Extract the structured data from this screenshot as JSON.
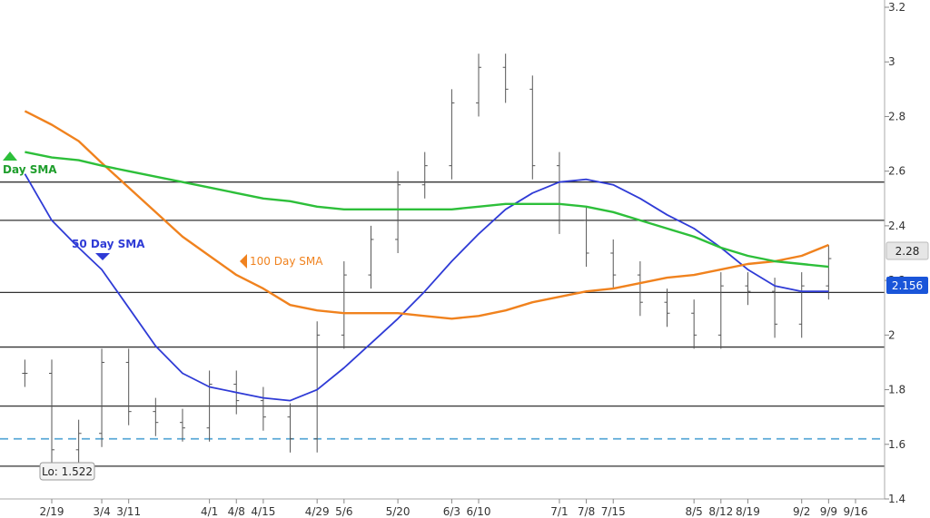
{
  "chart_data": {
    "type": "bar",
    "subtype": "ohlc-price-bars",
    "title": "",
    "xlabel": "",
    "ylabel": "",
    "ylim": [
      1.4,
      3.2
    ],
    "grid": false,
    "x_ticks": [
      "2/19",
      "3/4",
      "3/11",
      "4/1",
      "4/8",
      "4/15",
      "4/29",
      "5/6",
      "5/20",
      "6/3",
      "6/10",
      "7/1",
      "7/8",
      "7/15",
      "8/5",
      "8/12",
      "8/19",
      "9/2",
      "9/9",
      "9/16"
    ],
    "y_ticks": [
      "1.4",
      "1.6",
      "1.8",
      "2",
      "2.2",
      "2.4",
      "2.6",
      "2.8",
      "3",
      "3.2"
    ],
    "x": [
      "2/12",
      "2/19",
      "2/26",
      "3/4",
      "3/11",
      "3/18",
      "3/25",
      "4/1",
      "4/8",
      "4/15",
      "4/22",
      "4/29",
      "5/6",
      "5/13",
      "5/20",
      "5/27",
      "6/3",
      "6/10",
      "6/17",
      "6/24",
      "7/1",
      "7/8",
      "7/15",
      "7/22",
      "7/29",
      "8/5",
      "8/12",
      "8/19",
      "8/26",
      "9/2",
      "9/9"
    ],
    "series": [
      {
        "name": "Price",
        "values": [
          1.86,
          1.58,
          1.64,
          1.9,
          1.72,
          1.68,
          1.66,
          1.82,
          1.76,
          1.7,
          1.62,
          2.0,
          2.22,
          2.35,
          2.55,
          2.62,
          2.85,
          2.98,
          2.9,
          2.62,
          2.42,
          2.3,
          2.22,
          2.12,
          2.08,
          2.0,
          2.18,
          2.16,
          2.04,
          2.18,
          2.28
        ]
      },
      {
        "name": "50 Day SMA",
        "values": [
          2.59,
          2.42,
          2.32,
          2.24,
          2.1,
          1.96,
          1.86,
          1.81,
          1.79,
          1.77,
          1.76,
          1.8,
          1.88,
          1.97,
          2.06,
          2.16,
          2.27,
          2.37,
          2.46,
          2.52,
          2.56,
          2.57,
          2.55,
          2.5,
          2.44,
          2.39,
          2.32,
          2.24,
          2.18,
          2.16,
          2.16
        ]
      },
      {
        "name": "100 Day SMA",
        "values": [
          2.82,
          2.77,
          2.71,
          2.63,
          2.54,
          2.45,
          2.36,
          2.29,
          2.22,
          2.17,
          2.11,
          2.09,
          2.08,
          2.08,
          2.08,
          2.07,
          2.06,
          2.07,
          2.09,
          2.12,
          2.14,
          2.16,
          2.17,
          2.19,
          2.21,
          2.22,
          2.24,
          2.26,
          2.27,
          2.29,
          2.33
        ]
      },
      {
        "name": "Day SMA",
        "values": [
          2.67,
          2.65,
          2.64,
          2.62,
          2.6,
          2.58,
          2.56,
          2.54,
          2.52,
          2.5,
          2.49,
          2.47,
          2.46,
          2.46,
          2.46,
          2.46,
          2.46,
          2.47,
          2.48,
          2.48,
          2.48,
          2.47,
          2.45,
          2.42,
          2.39,
          2.36,
          2.32,
          2.29,
          2.27,
          2.26,
          2.25
        ]
      }
    ],
    "horizontal_levels": [
      2.56,
      2.42,
      2.156,
      1.956,
      1.74,
      1.52
    ],
    "dashed_level": 1.62,
    "low_label": "Lo: 1.522",
    "last_price_label": "2.28",
    "level_label": "2.156",
    "colors": {
      "price_bars": "#555555",
      "sma_50": "#2f3bd6",
      "sma_100": "#f0821e",
      "sma_green": "#2dbf3a",
      "levels": "#333333",
      "dashed_level": "#5aa9d6",
      "level_badge": "#1a55d9"
    },
    "labels": {
      "sma_50": "50 Day SMA",
      "sma_100": "100  Day SMA",
      "sma_green": "Day SMA"
    }
  }
}
